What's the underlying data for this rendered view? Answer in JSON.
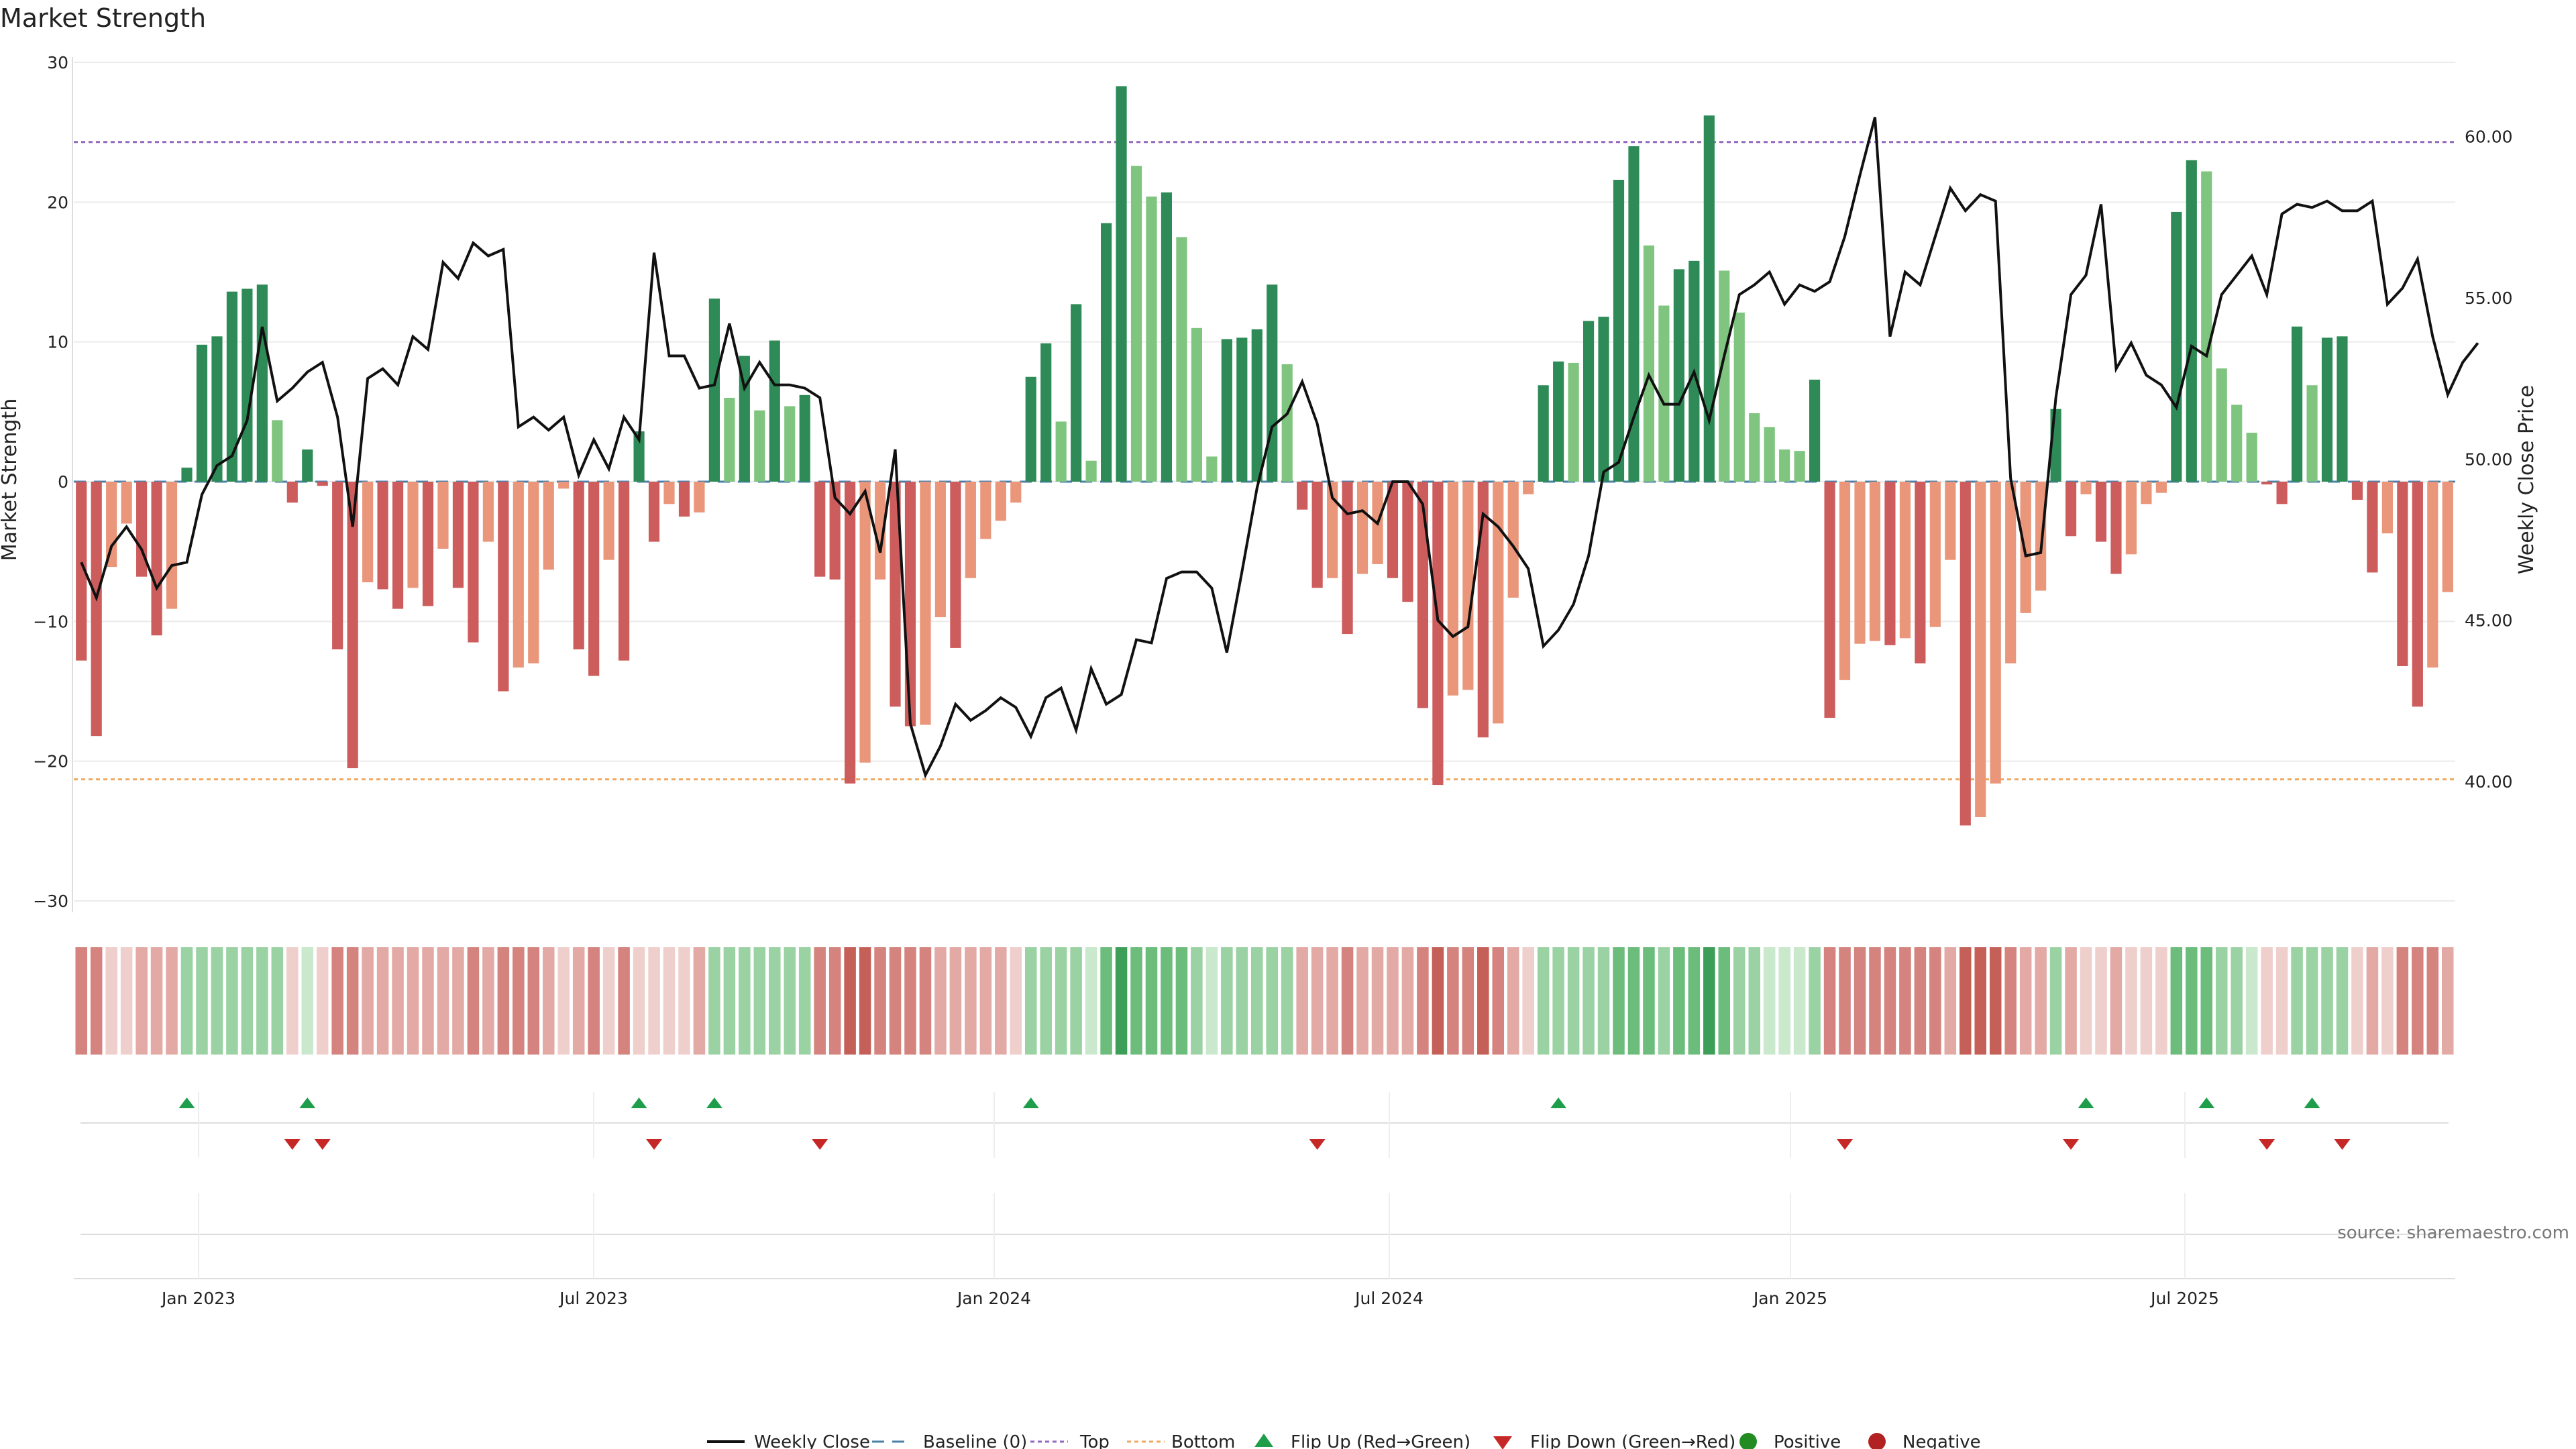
{
  "chart_data": {
    "type": "bar",
    "title": "Market Strength",
    "ylabel": "Market Strength",
    "y2label": "Weekly Close Price",
    "ylim": [
      -30,
      30
    ],
    "y2lim": [
      36.3,
      62.3
    ],
    "yticks": [
      "30",
      "20",
      "10",
      "0",
      "−10",
      "−20",
      "−30"
    ],
    "y2ticks": [
      "60.00",
      "55.00",
      "50.00",
      "45.00",
      "40.00"
    ],
    "xticks": [
      "Jan 2023",
      "Jul 2023",
      "Jan 2024",
      "Jul 2024",
      "Jan 2025",
      "Jul 2025"
    ],
    "top_line": 24.3,
    "bottom_line": -21.3,
    "strength": [
      -12.8,
      -18.2,
      -6.1,
      -3.0,
      -6.8,
      -11.0,
      -9.1,
      1.0,
      9.8,
      10.4,
      13.6,
      13.8,
      14.1,
      4.4,
      -1.5,
      2.3,
      -0.3,
      -12.0,
      -20.5,
      -7.2,
      -7.7,
      -9.1,
      -7.6,
      -8.9,
      -4.8,
      -7.6,
      -11.5,
      -4.3,
      -15.0,
      -13.3,
      -13.0,
      -6.3,
      -0.5,
      -12.0,
      -13.9,
      -5.6,
      -12.8,
      3.6,
      -4.3,
      -1.6,
      -2.5,
      -2.2,
      13.1,
      6.0,
      9.0,
      5.1,
      10.1,
      5.4,
      6.2,
      -6.8,
      -7.0,
      -21.6,
      -20.1,
      -7.0,
      -16.1,
      -17.5,
      -17.4,
      -9.7,
      -11.9,
      -6.9,
      -4.1,
      -2.8,
      -1.5,
      7.5,
      9.9,
      4.3,
      12.7,
      1.5,
      18.5,
      28.3,
      22.6,
      20.4,
      20.7,
      17.5,
      11.0,
      1.8,
      10.2,
      10.3,
      10.9,
      14.1,
      8.4,
      -2.0,
      -7.6,
      -6.9,
      -10.9,
      -6.6,
      -5.9,
      -6.9,
      -8.6,
      -16.2,
      -21.7,
      -15.3,
      -14.9,
      -18.3,
      -17.3,
      -8.3,
      -0.9,
      6.9,
      8.6,
      8.5,
      11.5,
      11.8,
      21.6,
      24.0,
      16.9,
      12.6,
      15.2,
      15.8,
      26.2,
      15.1,
      12.1,
      4.9,
      3.9,
      2.3,
      2.2,
      7.3,
      -16.9,
      -14.2,
      -11.6,
      -11.4,
      -11.7,
      -11.2,
      -13.0,
      -10.4,
      -5.6,
      -24.6,
      -24.0,
      -21.6,
      -13.0,
      -9.4,
      -7.8,
      5.2,
      -3.9,
      -0.9,
      -4.3,
      -6.6,
      -5.2,
      -1.6,
      -0.8,
      19.3,
      23.0,
      22.2,
      8.1,
      5.5,
      3.5,
      -0.2,
      -1.6,
      11.1,
      6.9,
      10.3,
      10.4,
      -1.3,
      -6.5,
      -3.7,
      -13.2,
      -16.1,
      -13.3,
      -7.9
    ],
    "price": [
      46.8,
      45.7,
      47.3,
      47.9,
      47.2,
      46.0,
      46.7,
      46.8,
      48.9,
      49.8,
      50.1,
      51.2,
      54.1,
      51.8,
      52.2,
      52.7,
      53.0,
      51.3,
      47.9,
      52.5,
      52.8,
      52.3,
      53.8,
      53.4,
      56.1,
      55.6,
      56.7,
      56.3,
      56.5,
      51.0,
      51.3,
      50.9,
      51.3,
      49.5,
      50.6,
      49.7,
      51.3,
      50.6,
      56.4,
      53.2,
      53.2,
      52.2,
      52.3,
      54.2,
      52.2,
      53.0,
      52.3,
      52.3,
      52.2,
      51.9,
      48.8,
      48.3,
      49.0,
      47.1,
      50.3,
      41.8,
      40.2,
      41.1,
      42.4,
      41.9,
      42.2,
      42.6,
      42.3,
      41.4,
      42.6,
      42.9,
      41.6,
      43.5,
      42.4,
      42.7,
      44.4,
      44.3,
      46.3,
      46.5,
      46.5,
      46.0,
      44.0,
      46.5,
      49.1,
      51.0,
      51.4,
      52.4,
      51.1,
      48.8,
      48.3,
      48.4,
      48.0,
      49.3,
      49.3,
      48.6,
      45.0,
      44.5,
      44.8,
      48.3,
      47.9,
      47.3,
      46.6,
      44.2,
      44.7,
      45.5,
      47.0,
      49.6,
      49.9,
      51.3,
      52.6,
      51.7,
      51.7,
      52.7,
      51.2,
      53.2,
      55.1,
      55.4,
      55.8,
      54.8,
      55.4,
      55.2,
      55.5,
      56.9,
      58.8,
      60.6,
      53.8,
      55.8,
      55.4,
      56.9,
      58.4,
      57.7,
      58.2,
      58.0,
      49.4,
      47.0,
      47.1,
      51.9,
      55.1,
      55.7,
      57.9,
      52.8,
      53.6,
      52.6,
      52.3,
      51.6,
      53.5,
      53.2,
      55.1,
      55.7,
      56.3,
      55.1,
      57.6,
      57.9,
      57.8,
      58.0,
      57.7,
      57.7,
      58.0,
      54.8,
      55.3,
      56.2,
      53.8,
      52.0,
      53.0,
      53.6
    ],
    "stripe": [
      "n3",
      "n3",
      "n1",
      "n1",
      "n2",
      "n2",
      "n2",
      "p2",
      "p2",
      "p2",
      "p2",
      "p2",
      "p2",
      "p2",
      "n1",
      "p1",
      "n1",
      "n3",
      "n3",
      "n2",
      "n2",
      "n2",
      "n2",
      "n2",
      "n2",
      "n2",
      "n3",
      "n2",
      "n3",
      "n3",
      "n3",
      "n2",
      "n1",
      "n2",
      "n3",
      "n1",
      "n3",
      "n1",
      "n1",
      "n1",
      "n1",
      "n2",
      "p2",
      "p2",
      "p2",
      "p2",
      "p2",
      "p2",
      "p2",
      "n3",
      "n3",
      "n4",
      "n4",
      "n3",
      "n3",
      "n3",
      "n3",
      "n2",
      "n2",
      "n2",
      "n2",
      "n2",
      "n1",
      "p2",
      "p2",
      "p2",
      "p2",
      "p1",
      "p3",
      "p4",
      "p3",
      "p3",
      "p3",
      "p3",
      "p2",
      "p1",
      "p2",
      "p2",
      "p2",
      "p2",
      "p2",
      "n2",
      "n2",
      "n2",
      "n3",
      "n2",
      "n2",
      "n2",
      "n2",
      "n3",
      "n4",
      "n3",
      "n3",
      "n4",
      "n3",
      "n2",
      "n1",
      "p2",
      "p2",
      "p2",
      "p2",
      "p2",
      "p3",
      "p3",
      "p3",
      "p2",
      "p3",
      "p3",
      "p4",
      "p3",
      "p2",
      "p2",
      "p1",
      "p1",
      "p1",
      "p2",
      "n3",
      "n3",
      "n3",
      "n3",
      "n3",
      "n3",
      "n3",
      "n3",
      "n2",
      "n4",
      "n4",
      "n4",
      "n3",
      "n2",
      "n2",
      "p2",
      "n2",
      "n1",
      "n1",
      "n2",
      "n1",
      "n1",
      "n1",
      "p3",
      "p3",
      "p3",
      "p2",
      "p2",
      "p1",
      "n1",
      "n1",
      "p2",
      "p2",
      "p2",
      "p2",
      "n1",
      "n2",
      "n1",
      "n3",
      "n3",
      "n3",
      "n2"
    ],
    "flip_up_index": [
      7,
      15,
      37,
      42,
      63,
      98,
      133,
      141,
      148
    ],
    "flip_down_index": [
      14,
      16,
      38,
      49,
      82,
      117,
      132,
      145,
      150
    ],
    "legend": [
      {
        "label": "Weekly Close"
      },
      {
        "label": "Baseline (0)"
      },
      {
        "label": "Top"
      },
      {
        "label": "Bottom"
      },
      {
        "label": "Flip Up (Red→Green)"
      },
      {
        "label": "Flip Down (Green→Red)"
      },
      {
        "label": "Positive"
      },
      {
        "label": "Negative"
      }
    ],
    "source": "source: sharemaestro.com"
  },
  "colors": {
    "pos_strong": "#2e8b57",
    "pos_weak": "#7fc47f",
    "neg_strong": "#cd5c5c",
    "neg_weak": "#e9967a",
    "price": "#111111",
    "top": "#9467bd",
    "bottom": "#f0a860",
    "baseline": "#4a7fa8",
    "flip_up": "#1e9e4a",
    "flip_down": "#c62828",
    "positive_dot": "#228b22",
    "negative_dot": "#b22222",
    "n1": "#efcfcc",
    "n2": "#e3a9a5",
    "n3": "#d4837e",
    "n4": "#c46058",
    "p1": "#c9e8cc",
    "p2": "#9bd2a3",
    "p3": "#6cbc7c",
    "p4": "#3d9e58"
  }
}
